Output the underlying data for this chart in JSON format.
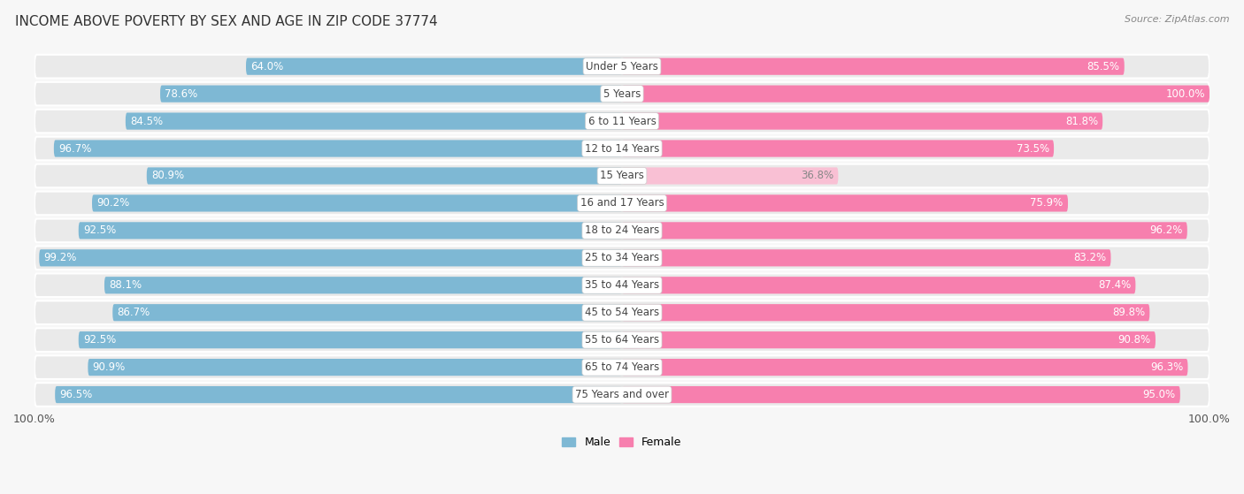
{
  "title": "INCOME ABOVE POVERTY BY SEX AND AGE IN ZIP CODE 37774",
  "source": "Source: ZipAtlas.com",
  "categories": [
    "Under 5 Years",
    "5 Years",
    "6 to 11 Years",
    "12 to 14 Years",
    "15 Years",
    "16 and 17 Years",
    "18 to 24 Years",
    "25 to 34 Years",
    "35 to 44 Years",
    "45 to 54 Years",
    "55 to 64 Years",
    "65 to 74 Years",
    "75 Years and over"
  ],
  "male_values": [
    64.0,
    78.6,
    84.5,
    96.7,
    80.9,
    90.2,
    92.5,
    99.2,
    88.1,
    86.7,
    92.5,
    90.9,
    96.5
  ],
  "female_values": [
    85.5,
    100.0,
    81.8,
    73.5,
    36.8,
    75.9,
    96.2,
    83.2,
    87.4,
    89.8,
    90.8,
    96.3,
    95.0
  ],
  "male_color": "#7EB8D4",
  "female_color": "#F77FAE",
  "female_color_light": "#F9C0D4",
  "row_bg_color": "#EAEAEA",
  "row_alt_bg": "#F0F0F0",
  "background_color": "#F7F7F7",
  "title_fontsize": 11,
  "value_fontsize": 8.5,
  "category_fontsize": 8.5,
  "source_fontsize": 8
}
